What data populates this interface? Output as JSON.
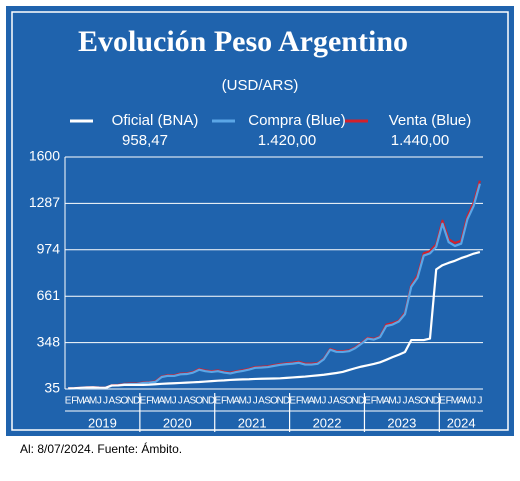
{
  "chart_data": {
    "type": "line",
    "title": "Evolución Peso Argentino",
    "subtitle": "(USD/ARS)",
    "footnote": "Al: 8/07/2024. Fuente: Ámbito.",
    "categories": [
      "E",
      "F",
      "M",
      "A",
      "M",
      "J",
      "J",
      "A",
      "S",
      "O",
      "N",
      "D",
      "E",
      "F",
      "M",
      "A",
      "M",
      "J",
      "J",
      "A",
      "S",
      "O",
      "N",
      "D",
      "E",
      "F",
      "M",
      "A",
      "M",
      "J",
      "J",
      "A",
      "S",
      "O",
      "N",
      "D",
      "E",
      "F",
      "M",
      "A",
      "M",
      "J",
      "J",
      "A",
      "S",
      "O",
      "N",
      "D",
      "E",
      "F",
      "M",
      "A",
      "M",
      "J",
      "J",
      "A",
      "S",
      "O",
      "N",
      "D",
      "E",
      "F",
      "M",
      "A",
      "M",
      "J",
      "J"
    ],
    "years": [
      "2019",
      "2020",
      "2021",
      "2022",
      "2023",
      "2024"
    ],
    "ylim": [
      35,
      1600
    ],
    "yticks": [
      35,
      348,
      661,
      974,
      1287,
      1600
    ],
    "grid": true,
    "series": [
      {
        "name": "Oficial (BNA)",
        "color": "#ffffff",
        "latest": {
          "value": 958.47,
          "label": "958,47"
        },
        "values": [
          39,
          40,
          43,
          45,
          46,
          44,
          43,
          59,
          59,
          63,
          63,
          63,
          63,
          64,
          67,
          70,
          72,
          74,
          76,
          78,
          80,
          82,
          85,
          88,
          91,
          93,
          96,
          98,
          100,
          101,
          103,
          104,
          105,
          106,
          107,
          110,
          113,
          116,
          119,
          123,
          127,
          131,
          137,
          143,
          150,
          163,
          175,
          186,
          195,
          204,
          215,
          232,
          250,
          266,
          285,
          365,
          365,
          365,
          375,
          842,
          870,
          886,
          900,
          918,
          932,
          948,
          958.47
        ]
      },
      {
        "name": "Compra (Blue)",
        "color": "#5ba6e6",
        "latest": {
          "value": 1420,
          "label": "1.420,00"
        },
        "values": [
          38,
          39,
          42,
          44,
          45,
          43,
          42,
          57,
          60,
          67,
          68,
          68,
          76,
          78,
          83,
          116,
          124,
          123,
          134,
          136,
          145,
          165,
          155,
          150,
          155,
          146,
          140,
          150,
          157,
          166,
          178,
          180,
          183,
          191,
          198,
          203,
          206,
          212,
          200,
          200,
          205,
          236,
          300,
          286,
          285,
          290,
          310,
          340,
          375,
          368,
          385,
          460,
          470,
          490,
          540,
          725,
          785,
          935,
          950,
          995,
          1150,
          1025,
          1000,
          1015,
          1180,
          1270,
          1420
        ]
      },
      {
        "name": "Venta (Blue)",
        "color": "#d3202b",
        "latest": {
          "value": 1440,
          "label": "1.440,00"
        },
        "values": [
          40,
          41,
          44,
          46,
          47,
          45,
          44,
          60,
          62,
          70,
          71,
          71,
          79,
          81,
          87,
          120,
          128,
          127,
          139,
          141,
          149,
          170,
          160,
          155,
          160,
          151,
          145,
          155,
          162,
          171,
          183,
          185,
          188,
          196,
          203,
          208,
          212,
          218,
          206,
          206,
          210,
          240,
          305,
          291,
          290,
          295,
          315,
          345,
          380,
          373,
          390,
          470,
          480,
          495,
          550,
          735,
          800,
          950,
          965,
          1010,
          1170,
          1045,
          1020,
          1035,
          1200,
          1290,
          1440
        ]
      }
    ]
  }
}
